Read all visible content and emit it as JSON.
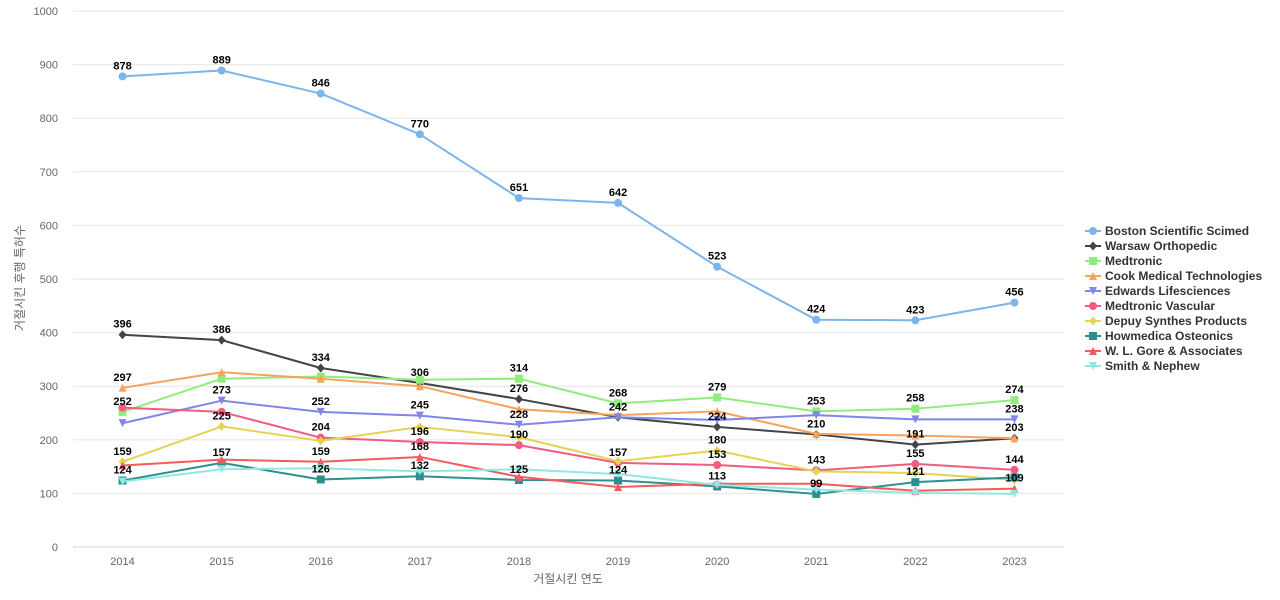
{
  "chart_data": {
    "type": "line",
    "title": "",
    "xlabel": "거절시킨 연도",
    "ylabel": "거절시킨 후행 특허수",
    "x": [
      2014,
      2015,
      2016,
      2017,
      2018,
      2019,
      2020,
      2021,
      2022,
      2023
    ],
    "ylim": [
      0,
      1000
    ],
    "yticks": [
      0,
      100,
      200,
      300,
      400,
      500,
      600,
      700,
      800,
      900,
      1000
    ],
    "grid": true,
    "legend_position": "right",
    "series": [
      {
        "name": "Boston Scientific Scimed",
        "color": "#7cb5ec",
        "marker": "circle",
        "values": [
          878,
          889,
          846,
          770,
          651,
          642,
          523,
          424,
          423,
          456
        ],
        "labeled": true
      },
      {
        "name": "Warsaw Orthopedic",
        "color": "#434348",
        "marker": "diamond",
        "values": [
          396,
          386,
          334,
          306,
          276,
          242,
          224,
          210,
          191,
          203
        ],
        "labeled": true
      },
      {
        "name": "Medtronic",
        "color": "#90ed7d",
        "marker": "square",
        "values": [
          252,
          314,
          318,
          312,
          314,
          268,
          279,
          253,
          258,
          274
        ],
        "labeled": [
          true,
          false,
          false,
          false,
          true,
          true,
          true,
          true,
          true,
          true
        ]
      },
      {
        "name": "Cook Medical Technologies",
        "color": "#f7a35c",
        "marker": "triangle",
        "values": [
          297,
          326,
          314,
          300,
          257,
          246,
          253,
          211,
          208,
          203
        ],
        "labeled": [
          true,
          false,
          false,
          false,
          false,
          false,
          false,
          false,
          false,
          false
        ]
      },
      {
        "name": "Edwards Lifesciences",
        "color": "#8085e9",
        "marker": "triangle-down",
        "values": [
          231,
          273,
          252,
          245,
          228,
          242,
          237,
          246,
          238,
          238
        ],
        "labeled": [
          false,
          true,
          true,
          true,
          true,
          false,
          false,
          false,
          false,
          true
        ]
      },
      {
        "name": "Medtronic Vascular",
        "color": "#f15c80",
        "marker": "circle",
        "values": [
          260,
          252,
          204,
          196,
          190,
          157,
          153,
          143,
          155,
          144
        ],
        "labeled": [
          false,
          false,
          true,
          true,
          true,
          true,
          true,
          true,
          true,
          true
        ]
      },
      {
        "name": "Depuy Synthes Products",
        "color": "#e4d354",
        "marker": "diamond",
        "values": [
          159,
          225,
          198,
          224,
          205,
          160,
          180,
          141,
          138,
          125
        ],
        "labeled": [
          true,
          true,
          false,
          false,
          false,
          false,
          true,
          false,
          false,
          false
        ]
      },
      {
        "name": "Howmedica Osteonics",
        "color": "#2b908f",
        "marker": "square",
        "values": [
          124,
          157,
          126,
          132,
          125,
          124,
          113,
          99,
          121,
          130
        ],
        "labeled": [
          true,
          true,
          true,
          true,
          true,
          true,
          true,
          true,
          true,
          false
        ]
      },
      {
        "name": "W. L. Gore & Associates",
        "color": "#f45b5b",
        "marker": "triangle",
        "values": [
          152,
          163,
          159,
          168,
          131,
          112,
          118,
          118,
          105,
          109
        ],
        "labeled": [
          false,
          false,
          true,
          true,
          false,
          false,
          false,
          false,
          false,
          true
        ]
      },
      {
        "name": "Smith & Nephew",
        "color": "#91e8e1",
        "marker": "triangle-down",
        "values": [
          122,
          145,
          147,
          141,
          145,
          136,
          116,
          107,
          101,
          99
        ],
        "labeled": false
      }
    ]
  }
}
